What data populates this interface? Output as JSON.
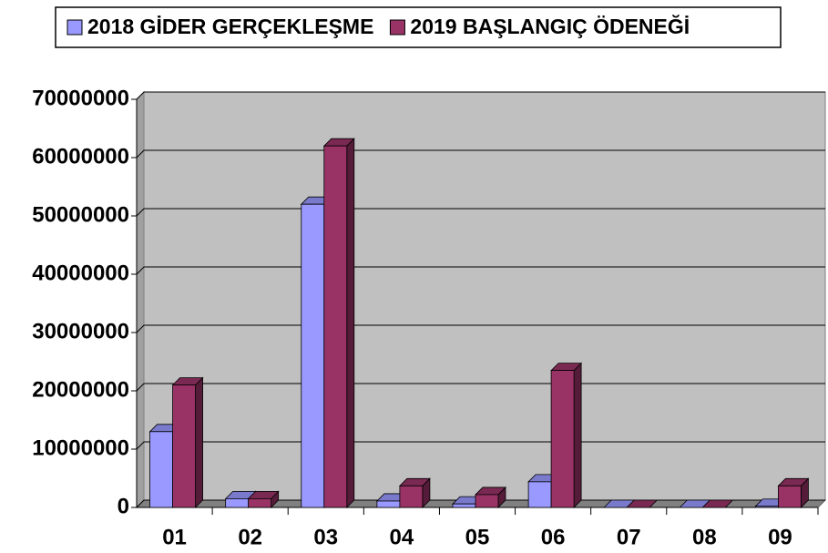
{
  "chart_data": {
    "type": "bar3d",
    "categories": [
      "01",
      "02",
      "03",
      "04",
      "05",
      "06",
      "07",
      "08",
      "09"
    ],
    "series": [
      {
        "name": "2018 GİDER GERÇEKLEŞME",
        "color": "#9999ff",
        "values": [
          13000000,
          1500000,
          52000000,
          1100000,
          600000,
          4400000,
          0,
          0,
          200000
        ]
      },
      {
        "name": "2019 BAŞLANGIÇ ÖDENEĞİ",
        "color": "#993366",
        "values": [
          21000000,
          1500000,
          62000000,
          3700000,
          2200000,
          23500000,
          0,
          0,
          3700000
        ]
      }
    ],
    "ylim": [
      0,
      70000000
    ],
    "yticks": [
      0,
      10000000,
      20000000,
      30000000,
      40000000,
      50000000,
      60000000,
      70000000
    ],
    "grid": true,
    "legend": "top"
  }
}
